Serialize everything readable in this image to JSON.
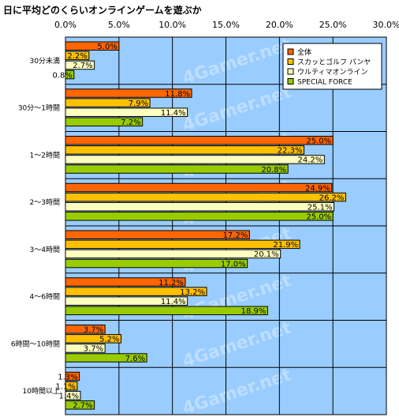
{
  "title": "日に平均どのくらいオンラインゲームを遊ぶか",
  "watermark": "4Gamer.net",
  "chart_data": {
    "type": "bar",
    "orientation": "horizontal",
    "categories": [
      "30分未満",
      "30分～1時間",
      "1～2時間",
      "2～3時間",
      "3～4時間",
      "4～6時間",
      "6時間～10時間",
      "10時間以上"
    ],
    "series": [
      {
        "name": "全体",
        "color": "#ff6600",
        "values": [
          5.0,
          11.8,
          25.0,
          24.9,
          17.2,
          11.2,
          3.7,
          1.3
        ]
      },
      {
        "name": "スカッとゴルフ パンヤ",
        "color": "#ffc000",
        "values": [
          2.2,
          7.9,
          22.3,
          26.2,
          21.9,
          13.2,
          5.2,
          1.1
        ]
      },
      {
        "name": "ウルティマオンライン",
        "color": "#ffffc0",
        "values": [
          2.7,
          11.4,
          24.2,
          25.1,
          20.1,
          11.4,
          3.7,
          1.4
        ]
      },
      {
        "name": "SPECIAL FORCE",
        "color": "#99cc00",
        "values": [
          0.8,
          7.2,
          20.8,
          25.0,
          17.0,
          18.9,
          7.6,
          2.7
        ]
      }
    ],
    "value_labels": [
      [
        "5.0%",
        "11.8%",
        "25.0%",
        "24.9%",
        "17.2%",
        "11.2%",
        "3.7%",
        "1.3%"
      ],
      [
        "2.2%",
        "7.9%",
        "22.3%",
        "26.2%",
        "21.9%",
        "13.2%",
        "5.2%",
        "1.1%"
      ],
      [
        "2.7%",
        "11.4%",
        "24.2%",
        "25.1%",
        "20.1%",
        "11.4%",
        "3.7%",
        "1.4%"
      ],
      [
        "0.8%",
        "7.2%",
        "20.8%",
        "25.0%",
        "17.0%",
        "18.9%",
        "7.6%",
        "2.7%"
      ]
    ],
    "xlim": [
      0,
      30
    ],
    "xticks": [
      "0.0%",
      "5.0%",
      "10.0%",
      "15.0%",
      "20.0%",
      "25.0%",
      "30.0%"
    ],
    "plot_background": "#99ccff",
    "grid": true,
    "legend_position": "top-right"
  }
}
